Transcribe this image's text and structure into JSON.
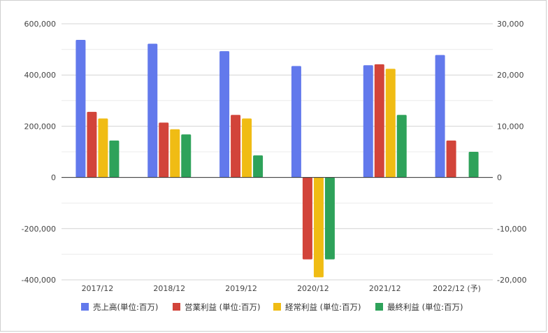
{
  "chart_data": {
    "type": "bar",
    "categories": [
      "2017/12",
      "2018/12",
      "2019/12",
      "2020/12",
      "2021/12",
      "2022/12 (予)"
    ],
    "series": [
      {
        "name": "売上高(単位:百万)",
        "axis": "left",
        "color": "#6279ec",
        "values": [
          537000,
          522000,
          493000,
          435000,
          438000,
          478000
        ]
      },
      {
        "name": "営業利益 (単位:百万)",
        "axis": "right",
        "color": "#d2443a",
        "values": [
          12800,
          10700,
          12200,
          -16000,
          22100,
          7200
        ]
      },
      {
        "name": "経常利益 (単位:百万)",
        "axis": "right",
        "color": "#f0bc14",
        "values": [
          11500,
          9400,
          11500,
          -19500,
          21200,
          null
        ]
      },
      {
        "name": "最終利益 (単位:百万)",
        "axis": "right",
        "color": "#2ea25a",
        "values": [
          7200,
          8400,
          4300,
          -16000,
          12200,
          5000
        ]
      }
    ],
    "left_axis": {
      "min": -400000,
      "max": 600000,
      "ticks": [
        "600,000",
        "400,000",
        "200,000",
        "0",
        "-200,000",
        "-400,000"
      ]
    },
    "right_axis": {
      "min": -20000,
      "max": 30000,
      "ticks": [
        "30,000",
        "20,000",
        "10,000",
        "0",
        "-10,000",
        "-20,000"
      ]
    },
    "grid": true,
    "legend_position": "bottom"
  }
}
